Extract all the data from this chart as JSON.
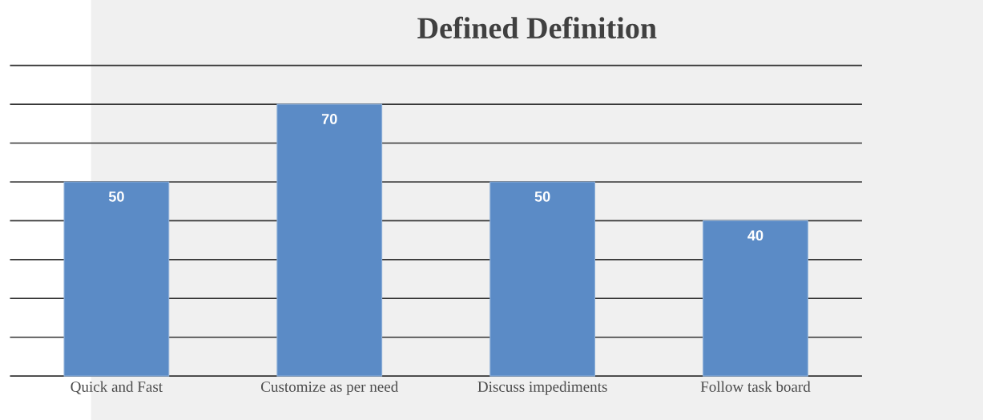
{
  "chart_data": {
    "type": "bar",
    "title": "Defined Definition",
    "categories": [
      "Quick and Fast",
      "Customize as per need",
      "Discuss impediments",
      "Follow task board"
    ],
    "values": [
      50,
      70,
      50,
      40
    ],
    "color": "#5b8bc6",
    "ylim": [
      0,
      80
    ],
    "yticks": [
      {
        "value": 0,
        "label": null
      },
      {
        "value": 10,
        "label": null
      },
      {
        "value": 20,
        "label": null
      },
      {
        "value": 30,
        "label": null
      },
      {
        "value": 40,
        "label": null
      },
      {
        "value": 50,
        "label": null
      },
      {
        "value": 60,
        "label": null
      },
      {
        "value": 70,
        "label": null
      },
      {
        "value": 80,
        "label": null
      }
    ],
    "grid": "y",
    "tick_labels": "x",
    "data_labels": true
  }
}
